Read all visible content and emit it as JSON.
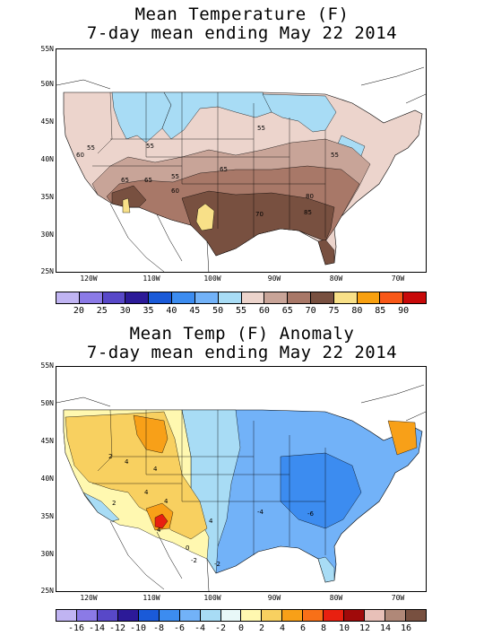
{
  "top_map": {
    "title_line1": "Mean Temperature (F)",
    "title_line2": "7-day mean ending May 22 2014",
    "contour_labels": [
      "55",
      "60",
      "55",
      "65",
      "55",
      "55",
      "65",
      "65",
      "60",
      "70",
      "80",
      "85",
      "55",
      "55"
    ],
    "legend": {
      "labels": [
        "20",
        "25",
        "30",
        "35",
        "40",
        "45",
        "50",
        "55",
        "60",
        "65",
        "70",
        "75",
        "80",
        "85",
        "90"
      ],
      "colors": [
        "#c0b4f2",
        "#8b7ae6",
        "#5848c8",
        "#2c1a98",
        "#1a5ad8",
        "#3c8cf0",
        "#72b2f8",
        "#a8dcf5",
        "#ecd4cc",
        "#c8a498",
        "#a87868",
        "#785040",
        "#f8e088",
        "#f8a010",
        "#f85818",
        "#c80a0a"
      ]
    }
  },
  "bottom_map": {
    "title_line1": "Mean Temp (F) Anomaly",
    "title_line2": "7-day mean ending May 22 2014",
    "contour_labels": [
      "2",
      "4",
      "4",
      "4",
      "2",
      "4",
      "4",
      "0",
      "-2",
      "-2",
      "-4",
      "-6",
      "4",
      "4"
    ],
    "legend": {
      "labels": [
        "-16",
        "-14",
        "-12",
        "-10",
        "-8",
        "-6",
        "-4",
        "-2",
        "0",
        "2",
        "4",
        "6",
        "8",
        "10",
        "12",
        "14",
        "16"
      ],
      "colors": [
        "#c0b4f2",
        "#8b7ae6",
        "#5848c8",
        "#2c1a98",
        "#1a5ad8",
        "#3c8cf0",
        "#72b2f8",
        "#a8dcf5",
        "#e8f8f8",
        "#fff8b0",
        "#f8d060",
        "#f8a018",
        "#f87018",
        "#e82010",
        "#a00a0a",
        "#e8c0b8",
        "#b08878",
        "#785040"
      ]
    }
  },
  "axes": {
    "lat_labels": [
      "55N",
      "50N",
      "45N",
      "40N",
      "35N",
      "30N",
      "25N"
    ],
    "lon_labels": [
      "120W",
      "110W",
      "100W",
      "90W",
      "80W",
      "70W"
    ]
  }
}
